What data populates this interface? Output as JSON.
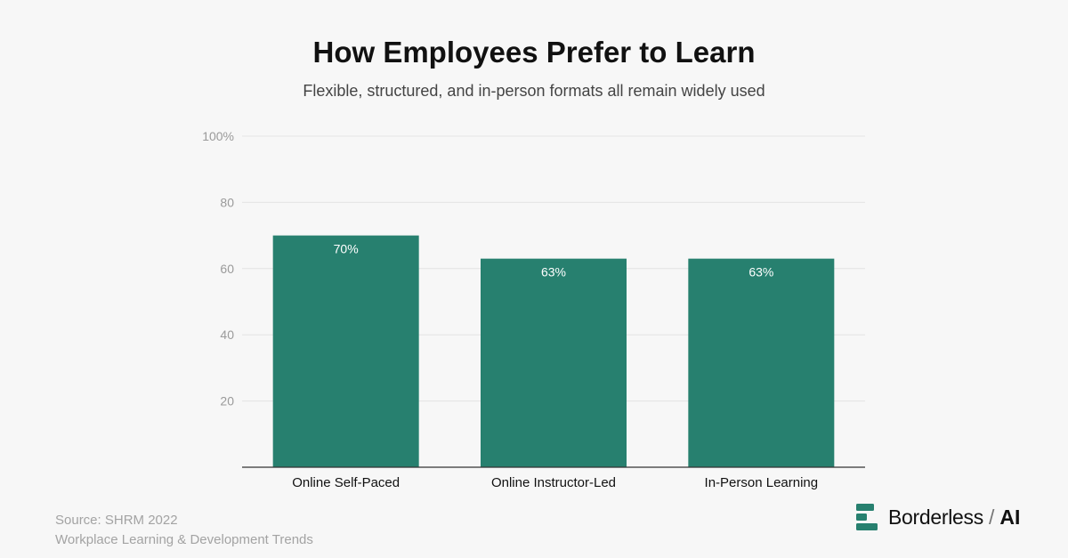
{
  "chart_data": {
    "type": "bar",
    "title": "How Employees Prefer to Learn",
    "subtitle": "Flexible, structured, and in-person formats all remain widely used",
    "categories": [
      "Online Self-Paced",
      "Online Instructor-Led",
      "In-Person Learning"
    ],
    "values": [
      70,
      63,
      63
    ],
    "data_labels": [
      "70%",
      "63%",
      "63%"
    ],
    "y_ticks": [
      {
        "value": 20,
        "label": "20"
      },
      {
        "value": 40,
        "label": "40"
      },
      {
        "value": 60,
        "label": "60"
      },
      {
        "value": 80,
        "label": "80"
      },
      {
        "value": 100,
        "label": "100%"
      }
    ],
    "ylim": [
      0,
      100
    ],
    "grid": true,
    "bar_color": "#27806f"
  },
  "footer": {
    "source_line1": "Source: SHRM 2022",
    "source_line2": "Workplace Learning & Development Trends"
  },
  "brand": {
    "name": "Borderless",
    "separator": "/",
    "suffix": "AI",
    "icon": "borderless-logo-icon",
    "color": "#27806f"
  }
}
